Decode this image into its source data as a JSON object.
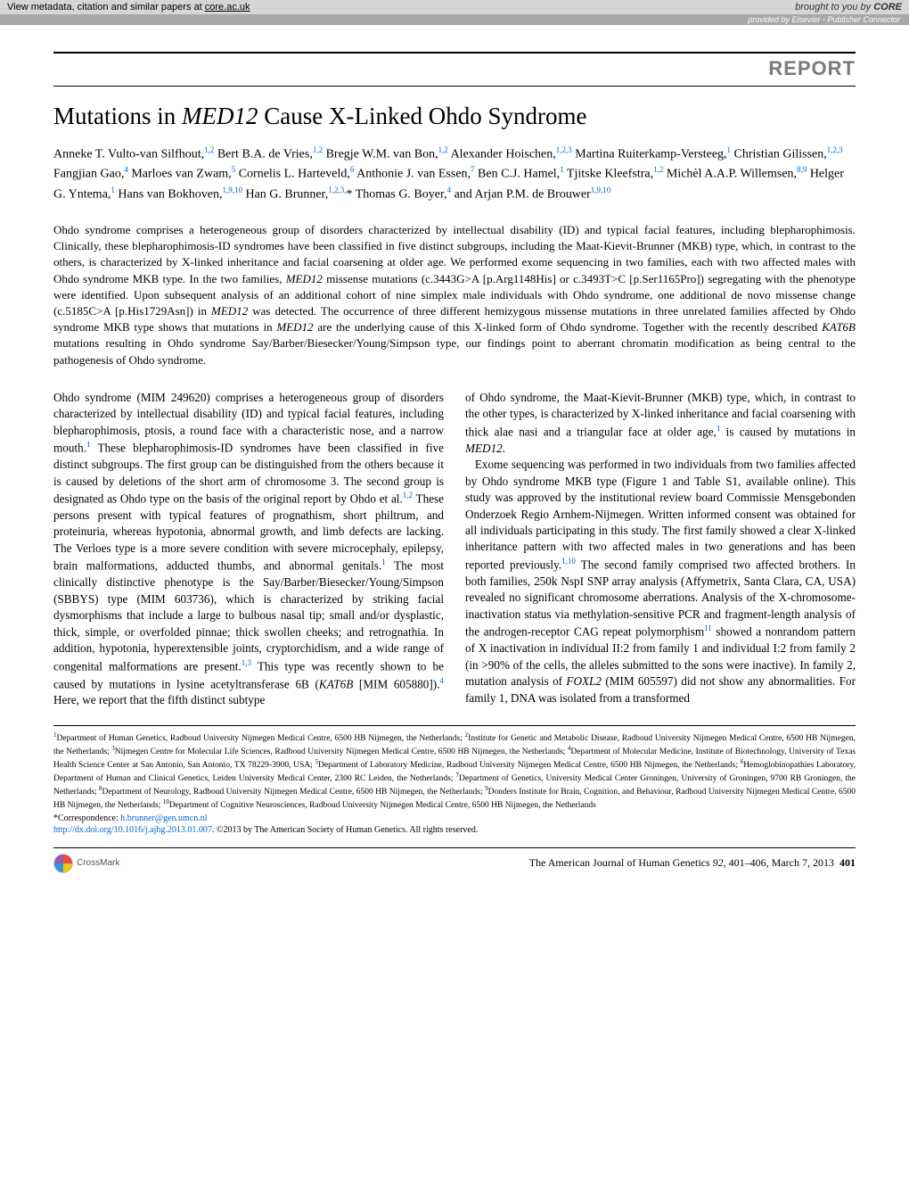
{
  "core_bar": {
    "left_prefix": "View metadata, citation and similar papers at ",
    "left_link": "core.ac.uk",
    "right_prefix": "brought to you by ",
    "right_logo": "CORE"
  },
  "provided_bar": "provided by Elsevier - Publisher Connector",
  "report_label": "REPORT",
  "title_pre": "Mutations in ",
  "title_gene": "MED12",
  "title_post": " Cause X-Linked Ohdo Syndrome",
  "authors_html": "Anneke T. Vulto-van Silfhout,<sup>1,2</sup> Bert B.A. de Vries,<sup>1,2</sup> Bregje W.M. van Bon,<sup>1,2</sup> Alexander Hoischen,<sup>1,2,3</sup> Martina Ruiterkamp-Versteeg,<sup>1</sup> Christian Gilissen,<sup>1,2,3</sup> Fangjian Gao,<sup>4</sup> Marloes van Zwam,<sup>5</sup> Cornelis L. Harteveld,<sup>6</sup> Anthonie J. van Essen,<sup>7</sup> Ben C.J. Hamel,<sup>1</sup> Tjitske Kleefstra,<sup>1,2</sup> Michèl A.A.P. Willemsen,<sup>8,9</sup> Helger G. Yntema,<sup>1</sup> Hans van Bokhoven,<sup>1,9,10</sup> Han G. Brunner,<sup>1,2,3,</sup>* Thomas G. Boyer,<sup>4</sup> and Arjan P.M. de Brouwer<sup>1,9,10</sup>",
  "abstract": "Ohdo syndrome comprises a heterogeneous group of disorders characterized by intellectual disability (ID) and typical facial features, including blepharophimosis. Clinically, these blepharophimosis-ID syndromes have been classified in five distinct subgroups, including the Maat-Kievit-Brunner (MKB) type, which, in contrast to the others, is characterized by X-linked inheritance and facial coarsening at older age. We performed exome sequencing in two families, each with two affected males with Ohdo syndrome MKB type. In the two families, <span class=\"gene\">MED12</span> missense mutations (c.3443G>A [p.Arg1148His] or c.3493T>C [p.Ser1165Pro]) segregating with the phenotype were identified. Upon subsequent analysis of an additional cohort of nine simplex male individuals with Ohdo syndrome, one additional de novo missense change (c.5185C>A [p.His1729Asn]) in <span class=\"gene\">MED12</span> was detected. The occurrence of three different hemizygous missense mutations in three unrelated families affected by Ohdo syndrome MKB type shows that mutations in <span class=\"gene\">MED12</span> are the underlying cause of this X-linked form of Ohdo syndrome. Together with the recently described <span class=\"gene\">KAT6B</span> mutations resulting in Ohdo syndrome Say/Barber/Biesecker/Young/Simpson type, our findings point to aberrant chromatin modification as being central to the pathogenesis of Ohdo syndrome.",
  "body_col1": "Ohdo syndrome (MIM 249620) comprises a heterogeneous group of disorders characterized by intellectual disability (ID) and typical facial features, including blepharophimosis, ptosis, a round face with a characteristic nose, and a narrow mouth.<sup>1</sup> These blepharophimosis-ID syndromes have been classified in five distinct subgroups. The first group can be distinguished from the others because it is caused by deletions of the short arm of chromosome 3. The second group is designated as Ohdo type on the basis of the original report by Ohdo et al.<sup>1,2</sup> These persons present with typical features of prognathism, short philtrum, and proteinuria, whereas hypotonia, abnormal growth, and limb defects are lacking. The Verloes type is a more severe condition with severe microcephaly, epilepsy, brain malformations, adducted thumbs, and abnormal genitals.<sup>1</sup> The most clinically distinctive phenotype is the Say/Barber/Biesecker/Young/Simpson (SBBYS) type (MIM 603736), which is characterized by striking facial dysmorphisms that include a large to bulbous nasal tip; small and/or dysplastic, thick, simple, or overfolded pinnae; thick swollen cheeks; and retrognathia. In addition, hypotonia, hyperextensible joints, cryptorchidism, and a wide range of congenital malformations are present.<sup>1,3</sup> This type was recently shown to be caused by mutations in lysine acetyltransferase 6B (<span class=\"gene\">KAT6B</span> [MIM 605880]).<sup>4</sup> Here, we report that the fifth distinct subtype",
  "body_col2": "of Ohdo syndrome, the Maat-Kievit-Brunner (MKB) type, which, in contrast to the other types, is characterized by X-linked inheritance and facial coarsening with thick alae nasi and a triangular face at older age,<sup>1</sup> is caused by mutations in <span class=\"gene\">MED12</span>.<br>&nbsp;&nbsp;&nbsp;Exome sequencing was performed in two individuals from two families affected by Ohdo syndrome MKB type (Figure 1 and Table S1, available online). This study was approved by the institutional review board Commissie Mensgebonden Onderzoek Regio Arnhem-Nijmegen. Written informed consent was obtained for all individuals participating in this study. The first family showed a clear X-linked inheritance pattern with two affected males in two generations and has been reported previously.<sup>1,10</sup> The second family comprised two affected brothers. In both families, 250k NspI SNP array analysis (Affymetrix, Santa Clara, CA, USA) revealed no significant chromosome aberrations. Analysis of the X-chromosome-inactivation status via methylation-sensitive PCR and fragment-length analysis of the androgen-receptor CAG repeat polymorphism<sup>11</sup> showed a nonrandom pattern of X inactivation in individual II:2 from family 1 and individual I:2 from family 2 (in >90% of the cells, the alleles submitted to the sons were inactive). In family 2, mutation analysis of <span class=\"gene\">FOXL2</span> (MIM 605597) did not show any abnormalities. For family 1, DNA was isolated from a transformed",
  "affiliations": "<sup>1</sup>Department of Human Genetics, Radboud University Nijmegen Medical Centre, 6500 HB Nijmegen, the Netherlands; <sup>2</sup>Institute for Genetic and Metabolic Disease, Radboud University Nijmegen Medical Centre, 6500 HB Nijmegen, the Netherlands; <sup>3</sup>Nijmegen Centre for Molecular Life Sciences, Radboud University Nijmegen Medical Centre, 6500 HB Nijmegen, the Netherlands; <sup>4</sup>Department of Molecular Medicine, Institute of Biotechnology, University of Texas Health Science Center at San Antonio, San Antonio, TX 78229-3900, USA; <sup>5</sup>Department of Laboratory Medicine, Radboud University Nijmegen Medical Centre, 6500 HB Nijmegen, the Netherlands; <sup>6</sup>Hemoglobinopathies Laboratory, Department of Human and Clinical Genetics, Leiden University Medical Center, 2300 RC Leiden, the Netherlands; <sup>7</sup>Department of Genetics, University Medical Center Groningen, University of Groningen, 9700 RB Groningen, the Netherlands; <sup>8</sup>Department of Neurology, Radboud University Nijmegen Medical Centre, 6500 HB Nijmegen, the Netherlands; <sup>9</sup>Donders Institute for Brain, Cognition, and Behaviour, Radboud University Nijmegen Medical Centre, 6500 HB Nijmegen, the Netherlands; <sup>10</sup>Department of Cognitive Neurosciences, Radboud University Nijmegen Medical Centre, 6500 HB Nijmegen, the Netherlands",
  "correspondence_label": "*Correspondence: ",
  "correspondence_email": "h.brunner@gen.umcn.nl",
  "doi_url": "http://dx.doi.org/10.1016/j.ajhg.2013.01.007",
  "doi_suffix": ". ©2013 by The American Society of Human Genetics. All rights reserved.",
  "crossmark_label": "CrossMark",
  "journal_line_pre": "The American Journal of Human Genetics ",
  "journal_vol": "92",
  "journal_pages": ", 401–406, March 7, 2013",
  "journal_pagenum": "401"
}
